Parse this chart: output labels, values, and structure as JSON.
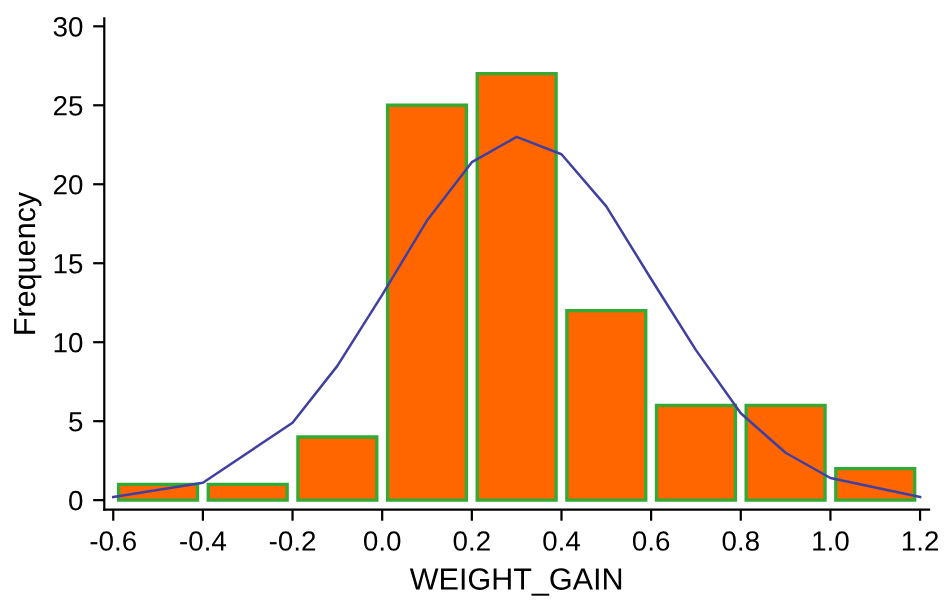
{
  "chart_data": [
    {
      "type": "histogram",
      "xlabel": "WEIGHT_GAIN",
      "ylabel": "Frequency",
      "bins": [
        -0.6,
        -0.4,
        -0.2,
        0.0,
        0.2,
        0.4,
        0.6,
        0.8,
        1.0,
        1.2
      ],
      "values": [
        1,
        1,
        4,
        25,
        27,
        12,
        6,
        6,
        2
      ],
      "color": "#ff6600",
      "xlim": [
        -0.62,
        1.22
      ],
      "ylim": [
        -0.6,
        30.5
      ],
      "xticks": [
        -0.6,
        -0.4,
        -0.2,
        {
          "value": 0,
          "label": "0.0"
        },
        0.2,
        0.4,
        0.6,
        0.8,
        {
          "value": 1,
          "label": "1.0"
        },
        1.2
      ],
      "yticks": [
        0,
        5,
        10,
        15,
        20,
        25,
        30
      ],
      "grid": false,
      "legend": false
    },
    {
      "type": "line",
      "series": [
        {
          "color": "#4040a0",
          "x": [
            -0.6,
            -0.4,
            -0.2,
            -0.1,
            0.0,
            0.1,
            0.2,
            0.3,
            0.4,
            0.5,
            0.6,
            0.7,
            0.8,
            0.9,
            1.0,
            1.2
          ],
          "values": [
            0.2,
            1.1,
            4.9,
            8.5,
            13.0,
            17.7,
            21.4,
            23,
            21.9,
            18.6,
            14.0,
            9.5,
            5.5,
            3.0,
            1.4,
            0.2
          ]
        }
      ],
      "xlim": [
        -0.62,
        1.22
      ],
      "ylim": [
        -0.6,
        30.5
      ],
      "tick_labels": false,
      "marker": "none"
    }
  ]
}
